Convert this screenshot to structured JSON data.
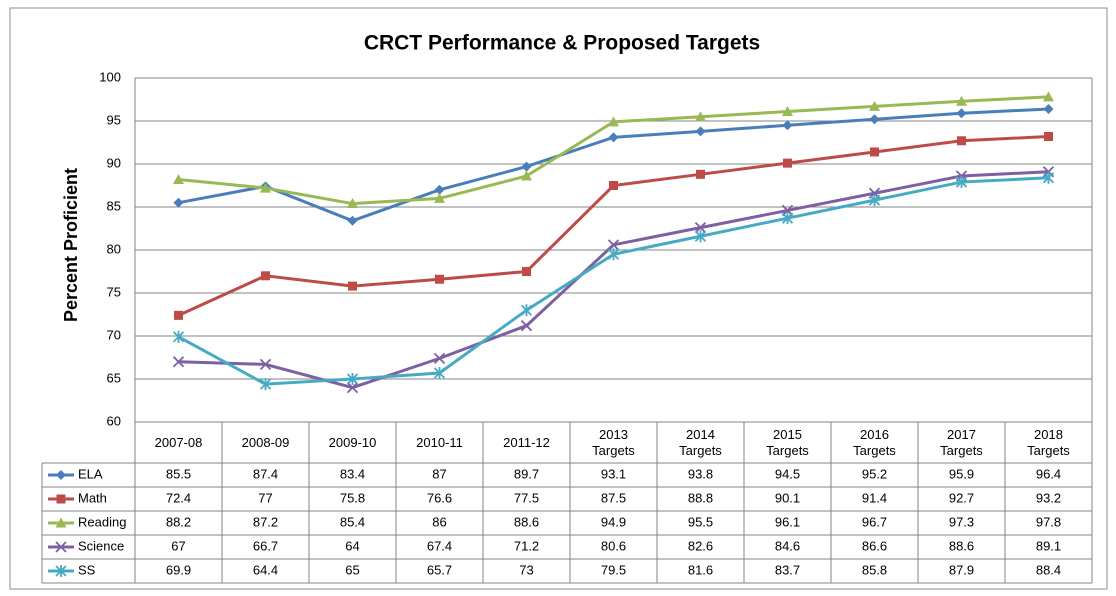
{
  "chart_data": {
    "type": "line",
    "title": "CRCT Performance & Proposed Targets",
    "y_label": "Percent Proficient",
    "categories": [
      "2007-08",
      "2008-09",
      "2009-10",
      "2010-11",
      "2011-12",
      "2013 Targets",
      "2014 Targets",
      "2015 Targets",
      "2016 Targets",
      "2017 Targets",
      "2018 Targets"
    ],
    "series": [
      {
        "name": "ELA",
        "color": "#4a7ebb",
        "marker": "diamond",
        "values": [
          85.5,
          87.4,
          83.4,
          87,
          89.7,
          93.1,
          93.8,
          94.5,
          95.2,
          95.9,
          96.4
        ]
      },
      {
        "name": "Math",
        "color": "#be4b48",
        "marker": "square",
        "values": [
          72.4,
          77,
          75.8,
          76.6,
          77.5,
          87.5,
          88.8,
          90.1,
          91.4,
          92.7,
          93.2
        ]
      },
      {
        "name": "Reading",
        "color": "#98b954",
        "marker": "triangle",
        "values": [
          88.2,
          87.2,
          85.4,
          86,
          88.6,
          94.9,
          95.5,
          96.1,
          96.7,
          97.3,
          97.8
        ]
      },
      {
        "name": "Science",
        "color": "#7d60a0",
        "marker": "x",
        "values": [
          67,
          66.7,
          64,
          67.4,
          71.2,
          80.6,
          82.6,
          84.6,
          86.6,
          88.6,
          89.1
        ]
      },
      {
        "name": "SS",
        "color": "#46aac5",
        "marker": "star",
        "values": [
          69.9,
          64.4,
          65,
          65.7,
          73,
          79.5,
          81.6,
          83.7,
          85.8,
          87.9,
          88.4
        ]
      }
    ],
    "ylim": [
      60,
      100
    ],
    "yticks": [
      60,
      65,
      70,
      75,
      80,
      85,
      90,
      95,
      100
    ],
    "grid": true
  }
}
